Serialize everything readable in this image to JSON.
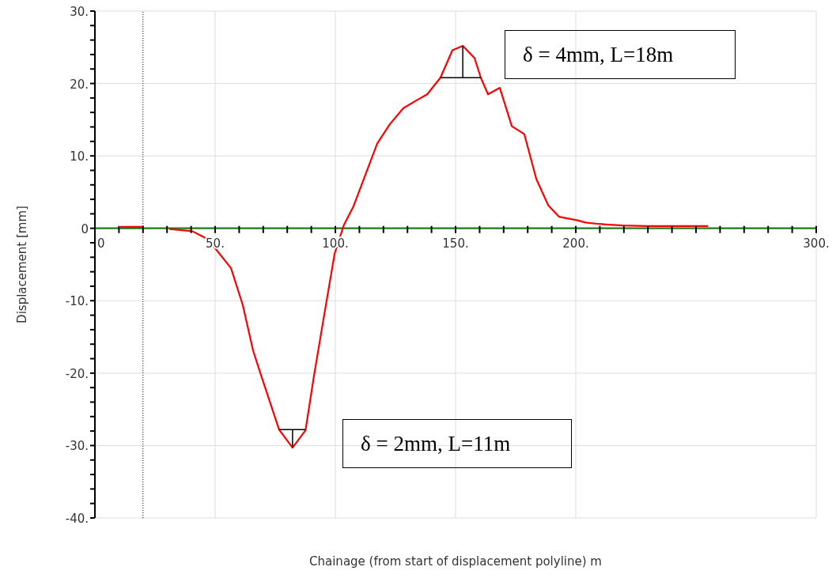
{
  "chart_data": {
    "type": "line",
    "xlabel": "Chainage (from start of displacement polyline) m",
    "ylabel": "Displacement [mm]",
    "annotations": [
      "δ = 4mm, L=18m",
      "δ = 2mm, L=11m"
    ],
    "series": [
      {
        "color": "#1e7b1e",
        "x": [
          0,
          300
        ],
        "values": [
          0,
          0
        ]
      },
      {
        "color": "#ff0000",
        "x": [
          10.5,
          20
        ],
        "values": [
          0.2,
          0.2
        ]
      },
      {
        "color": "#ff0000",
        "x": [
          31,
          40.5,
          47,
          56.6,
          61.5,
          65.8,
          69,
          76.6,
          82.2,
          87.6,
          91,
          95.4,
          99.7,
          103.6,
          107.5,
          117.4,
          122.7,
          128.3,
          133.9,
          138.2,
          143.7,
          148.7,
          153,
          157.9,
          160.5,
          163.5,
          168.4,
          173.4,
          178.6,
          183.6,
          188.5,
          193,
          200.7,
          204,
          209.5,
          219.4,
          229.3,
          255
        ],
        "values": [
          -0.1,
          -0.4,
          -1.5,
          -5.5,
          -10.6,
          -16.9,
          -20.2,
          -27.8,
          -30.3,
          -27.9,
          -20.6,
          -11.9,
          -3.5,
          0.5,
          3.0,
          11.7,
          14.4,
          16.6,
          17.7,
          18.5,
          20.8,
          24.6,
          25.2,
          23.5,
          20.8,
          18.5,
          19.4,
          14.1,
          13.0,
          6.8,
          3.2,
          1.6,
          1.1,
          0.8,
          0.6,
          0.4,
          0.3,
          0.3
        ]
      }
    ],
    "xlim": [
      0,
      300
    ],
    "xticks": [
      {
        "value": 0,
        "label": "0"
      },
      {
        "value": 10,
        "label": null
      },
      {
        "value": 20,
        "label": null
      },
      {
        "value": 30,
        "label": null
      },
      {
        "value": 40,
        "label": null
      },
      {
        "value": 50,
        "label": "50."
      },
      {
        "value": 60,
        "label": null
      },
      {
        "value": 70,
        "label": null
      },
      {
        "value": 80,
        "label": null
      },
      {
        "value": 90,
        "label": null
      },
      {
        "value": 100,
        "label": "100."
      },
      {
        "value": 110,
        "label": null
      },
      {
        "value": 120,
        "label": null
      },
      {
        "value": 130,
        "label": null
      },
      {
        "value": 140,
        "label": null
      },
      {
        "value": 150,
        "label": "150."
      },
      {
        "value": 160,
        "label": null
      },
      {
        "value": 170,
        "label": null
      },
      {
        "value": 180,
        "label": null
      },
      {
        "value": 190,
        "label": null
      },
      {
        "value": 200,
        "label": "200."
      },
      {
        "value": 210,
        "label": null
      },
      {
        "value": 220,
        "label": null
      },
      {
        "value": 230,
        "label": null
      },
      {
        "value": 240,
        "label": null
      },
      {
        "value": 250,
        "label": null
      },
      {
        "value": 260,
        "label": null
      },
      {
        "value": 270,
        "label": null
      },
      {
        "value": 280,
        "label": null
      },
      {
        "value": 290,
        "label": null
      },
      {
        "value": 300,
        "label": "300."
      }
    ],
    "ylim": [
      -40,
      30
    ],
    "yticks": [
      {
        "value": -40,
        "label": "-40."
      },
      {
        "value": -38,
        "label": null
      },
      {
        "value": -36,
        "label": null
      },
      {
        "value": -34,
        "label": null
      },
      {
        "value": -32,
        "label": null
      },
      {
        "value": -30,
        "label": "-30."
      },
      {
        "value": -28,
        "label": null
      },
      {
        "value": -26,
        "label": null
      },
      {
        "value": -24,
        "label": null
      },
      {
        "value": -22,
        "label": null
      },
      {
        "value": -20,
        "label": "-20."
      },
      {
        "value": -18,
        "label": null
      },
      {
        "value": -16,
        "label": null
      },
      {
        "value": -14,
        "label": null
      },
      {
        "value": -12,
        "label": null
      },
      {
        "value": -10,
        "label": "-10."
      },
      {
        "value": -8,
        "label": null
      },
      {
        "value": -6,
        "label": null
      },
      {
        "value": -4,
        "label": null
      },
      {
        "value": -2,
        "label": null
      },
      {
        "value": 0,
        "label": "0"
      },
      {
        "value": 2,
        "label": null
      },
      {
        "value": 4,
        "label": null
      },
      {
        "value": 6,
        "label": null
      },
      {
        "value": 8,
        "label": null
      },
      {
        "value": 10,
        "label": "10."
      },
      {
        "value": 12,
        "label": null
      },
      {
        "value": 14,
        "label": null
      },
      {
        "value": 16,
        "label": null
      },
      {
        "value": 18,
        "label": null
      },
      {
        "value": 20,
        "label": "20."
      },
      {
        "value": 22,
        "label": null
      },
      {
        "value": 24,
        "label": null
      },
      {
        "value": 26,
        "label": null
      },
      {
        "value": 28,
        "label": null
      },
      {
        "value": 30,
        "label": "30."
      }
    ],
    "grid": true,
    "legend": false,
    "marker": "none",
    "line_style": "solid",
    "ref_lines": [
      {
        "axis": "x",
        "value": 20,
        "label": null,
        "color": "#000000",
        "line_style": "dotted"
      }
    ]
  }
}
